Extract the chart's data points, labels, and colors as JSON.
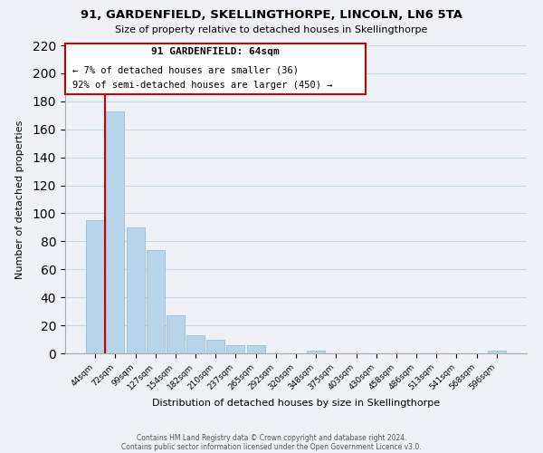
{
  "title": "91, GARDENFIELD, SKELLINGTHORPE, LINCOLN, LN6 5TA",
  "subtitle": "Size of property relative to detached houses in Skellingthorpe",
  "xlabel": "Distribution of detached houses by size in Skellingthorpe",
  "ylabel": "Number of detached properties",
  "bar_labels": [
    "44sqm",
    "72sqm",
    "99sqm",
    "127sqm",
    "154sqm",
    "182sqm",
    "210sqm",
    "237sqm",
    "265sqm",
    "292sqm",
    "320sqm",
    "348sqm",
    "375sqm",
    "403sqm",
    "430sqm",
    "458sqm",
    "486sqm",
    "513sqm",
    "541sqm",
    "568sqm",
    "596sqm"
  ],
  "bar_values": [
    95,
    173,
    90,
    74,
    27,
    13,
    10,
    6,
    6,
    0,
    0,
    2,
    0,
    0,
    0,
    0,
    0,
    0,
    0,
    0,
    2
  ],
  "bar_color": "#b8d4ea",
  "bar_edge_color": "#9bbdd6",
  "ylim": [
    0,
    220
  ],
  "yticks": [
    0,
    20,
    40,
    60,
    80,
    100,
    120,
    140,
    160,
    180,
    200,
    220
  ],
  "annotation_title": "91 GARDENFIELD: 64sqm",
  "annotation_line1": "← 7% of detached houses are smaller (36)",
  "annotation_line2": "92% of semi-detached houses are larger (450) →",
  "annotation_box_color": "#ffffff",
  "annotation_box_edge": "#cc0000",
  "red_line_x": 0.5,
  "footer_line1": "Contains HM Land Registry data © Crown copyright and database right 2024.",
  "footer_line2": "Contains public sector information licensed under the Open Government Licence v3.0.",
  "grid_color": "#c8d8e8",
  "background_color": "#eef2f7"
}
